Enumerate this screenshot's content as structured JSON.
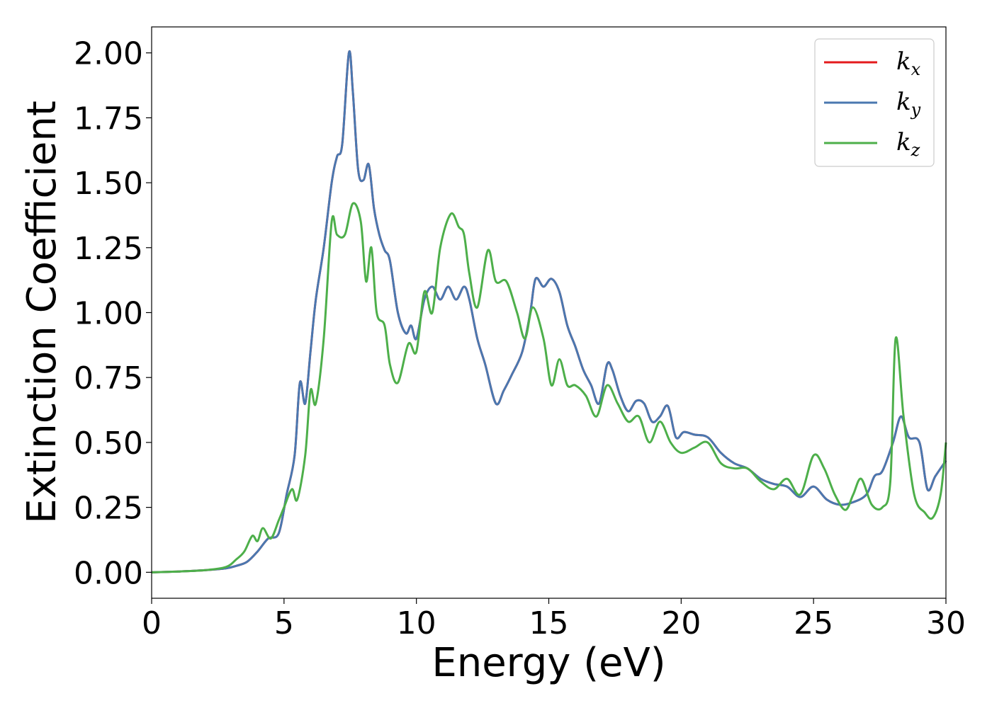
{
  "chart_data": {
    "type": "line",
    "xlabel": "Energy (eV)",
    "ylabel": "Extinction Coefficient",
    "xlim": [
      0,
      30
    ],
    "ylim": [
      -0.1,
      2.1
    ],
    "xticks": [
      0,
      5,
      10,
      15,
      20,
      25,
      30
    ],
    "xtick_labels": [
      "0",
      "5",
      "10",
      "15",
      "20",
      "25",
      "30"
    ],
    "yticks": [
      0.0,
      0.25,
      0.5,
      0.75,
      1.0,
      1.25,
      1.5,
      1.75,
      2.0
    ],
    "ytick_labels": [
      "0.00",
      "0.25",
      "0.50",
      "0.75",
      "1.00",
      "1.25",
      "1.50",
      "1.75",
      "2.00"
    ],
    "grid": false,
    "legend_position": "top-right",
    "series": [
      {
        "name": "k_x",
        "legend_base": "k",
        "legend_sub": "x",
        "color": "#e41a1c",
        "x": [
          0,
          1,
          2,
          2.8,
          3.2,
          3.6,
          4.0,
          4.4,
          4.8,
          5.1,
          5.4,
          5.6,
          5.8,
          6.0,
          6.2,
          6.5,
          6.8,
          7.0,
          7.2,
          7.45,
          7.6,
          7.8,
          8.0,
          8.2,
          8.4,
          8.6,
          8.8,
          9.0,
          9.3,
          9.6,
          9.8,
          10.0,
          10.3,
          10.6,
          10.9,
          11.2,
          11.5,
          11.8,
          12.0,
          12.3,
          12.6,
          13.0,
          13.3,
          13.6,
          14.0,
          14.3,
          14.5,
          14.8,
          15.1,
          15.4,
          15.7,
          16.0,
          16.3,
          16.6,
          16.9,
          17.2,
          17.4,
          17.7,
          18.0,
          18.3,
          18.6,
          18.9,
          19.2,
          19.5,
          19.8,
          20.1,
          20.5,
          21.0,
          21.5,
          22.0,
          22.5,
          23.0,
          23.5,
          24.0,
          24.5,
          25.0,
          25.5,
          26.0,
          26.5,
          27.0,
          27.3,
          27.6,
          28.0,
          28.3,
          28.6,
          29.0,
          29.3,
          29.6,
          30.0
        ],
        "values": [
          0,
          0.003,
          0.008,
          0.015,
          0.025,
          0.04,
          0.08,
          0.13,
          0.15,
          0.3,
          0.45,
          0.73,
          0.65,
          0.85,
          1.05,
          1.25,
          1.5,
          1.6,
          1.65,
          2.0,
          1.85,
          1.55,
          1.51,
          1.57,
          1.4,
          1.3,
          1.24,
          1.2,
          1.0,
          0.92,
          0.95,
          0.9,
          1.05,
          1.1,
          1.05,
          1.1,
          1.05,
          1.1,
          1.05,
          0.9,
          0.8,
          0.65,
          0.7,
          0.76,
          0.85,
          1.0,
          1.13,
          1.1,
          1.13,
          1.08,
          0.95,
          0.87,
          0.78,
          0.72,
          0.65,
          0.8,
          0.78,
          0.68,
          0.62,
          0.66,
          0.65,
          0.58,
          0.6,
          0.64,
          0.52,
          0.54,
          0.53,
          0.52,
          0.46,
          0.42,
          0.4,
          0.36,
          0.34,
          0.33,
          0.29,
          0.33,
          0.28,
          0.26,
          0.27,
          0.3,
          0.37,
          0.39,
          0.5,
          0.6,
          0.52,
          0.5,
          0.32,
          0.37,
          0.43
        ],
        "duplicate_of": "k_y"
      },
      {
        "name": "k_y",
        "legend_base": "k",
        "legend_sub": "y",
        "color": "#4a78b0",
        "x": [
          0,
          1,
          2,
          2.8,
          3.2,
          3.6,
          4.0,
          4.4,
          4.8,
          5.1,
          5.4,
          5.6,
          5.8,
          6.0,
          6.2,
          6.5,
          6.8,
          7.0,
          7.2,
          7.45,
          7.6,
          7.8,
          8.0,
          8.2,
          8.4,
          8.6,
          8.8,
          9.0,
          9.3,
          9.6,
          9.8,
          10.0,
          10.3,
          10.6,
          10.9,
          11.2,
          11.5,
          11.8,
          12.0,
          12.3,
          12.6,
          13.0,
          13.3,
          13.6,
          14.0,
          14.3,
          14.5,
          14.8,
          15.1,
          15.4,
          15.7,
          16.0,
          16.3,
          16.6,
          16.9,
          17.2,
          17.4,
          17.7,
          18.0,
          18.3,
          18.6,
          18.9,
          19.2,
          19.5,
          19.8,
          20.1,
          20.5,
          21.0,
          21.5,
          22.0,
          22.5,
          23.0,
          23.5,
          24.0,
          24.5,
          25.0,
          25.5,
          26.0,
          26.5,
          27.0,
          27.3,
          27.6,
          28.0,
          28.3,
          28.6,
          29.0,
          29.3,
          29.6,
          30.0
        ],
        "values": [
          0,
          0.003,
          0.008,
          0.015,
          0.025,
          0.04,
          0.08,
          0.13,
          0.15,
          0.3,
          0.45,
          0.73,
          0.65,
          0.85,
          1.05,
          1.25,
          1.5,
          1.6,
          1.65,
          2.0,
          1.85,
          1.55,
          1.51,
          1.57,
          1.4,
          1.3,
          1.24,
          1.2,
          1.0,
          0.92,
          0.95,
          0.9,
          1.05,
          1.1,
          1.05,
          1.1,
          1.05,
          1.1,
          1.05,
          0.9,
          0.8,
          0.65,
          0.7,
          0.76,
          0.85,
          1.0,
          1.13,
          1.1,
          1.13,
          1.08,
          0.95,
          0.87,
          0.78,
          0.72,
          0.65,
          0.8,
          0.78,
          0.68,
          0.62,
          0.66,
          0.65,
          0.58,
          0.6,
          0.64,
          0.52,
          0.54,
          0.53,
          0.52,
          0.46,
          0.42,
          0.4,
          0.36,
          0.34,
          0.33,
          0.29,
          0.33,
          0.28,
          0.26,
          0.27,
          0.3,
          0.37,
          0.39,
          0.5,
          0.6,
          0.52,
          0.5,
          0.32,
          0.37,
          0.43
        ]
      },
      {
        "name": "k_z",
        "legend_base": "k",
        "legend_sub": "z",
        "color": "#4daf4a",
        "x": [
          0,
          1,
          2,
          2.8,
          3.2,
          3.5,
          3.8,
          4.0,
          4.2,
          4.5,
          4.8,
          5.0,
          5.3,
          5.5,
          5.8,
          6.0,
          6.2,
          6.5,
          6.8,
          7.0,
          7.3,
          7.6,
          7.9,
          8.1,
          8.3,
          8.5,
          8.8,
          9.0,
          9.3,
          9.7,
          10.0,
          10.3,
          10.6,
          10.9,
          11.3,
          11.6,
          11.8,
          12.0,
          12.3,
          12.7,
          13.0,
          13.4,
          13.8,
          14.1,
          14.4,
          14.8,
          15.1,
          15.4,
          15.7,
          16.0,
          16.4,
          16.8,
          17.2,
          17.6,
          18.0,
          18.4,
          18.8,
          19.2,
          19.6,
          20.0,
          20.5,
          21.0,
          21.5,
          22.0,
          22.5,
          23.0,
          23.5,
          24.0,
          24.5,
          25.0,
          25.4,
          25.8,
          26.2,
          26.5,
          26.8,
          27.2,
          27.6,
          27.9,
          28.1,
          28.4,
          28.8,
          29.2,
          29.5,
          29.8,
          30.0
        ],
        "values": [
          0,
          0.003,
          0.008,
          0.02,
          0.05,
          0.08,
          0.14,
          0.12,
          0.17,
          0.13,
          0.2,
          0.25,
          0.32,
          0.28,
          0.45,
          0.7,
          0.65,
          0.9,
          1.35,
          1.3,
          1.3,
          1.42,
          1.35,
          1.12,
          1.25,
          1.0,
          0.95,
          0.8,
          0.73,
          0.88,
          0.85,
          1.08,
          1.0,
          1.25,
          1.38,
          1.33,
          1.3,
          1.15,
          1.02,
          1.24,
          1.12,
          1.12,
          1.0,
          0.9,
          1.02,
          0.9,
          0.72,
          0.82,
          0.72,
          0.72,
          0.68,
          0.6,
          0.72,
          0.65,
          0.58,
          0.6,
          0.5,
          0.58,
          0.5,
          0.46,
          0.48,
          0.5,
          0.42,
          0.4,
          0.4,
          0.35,
          0.32,
          0.36,
          0.3,
          0.45,
          0.4,
          0.3,
          0.24,
          0.3,
          0.36,
          0.26,
          0.25,
          0.35,
          0.9,
          0.6,
          0.3,
          0.23,
          0.21,
          0.3,
          0.5
        ]
      }
    ]
  }
}
